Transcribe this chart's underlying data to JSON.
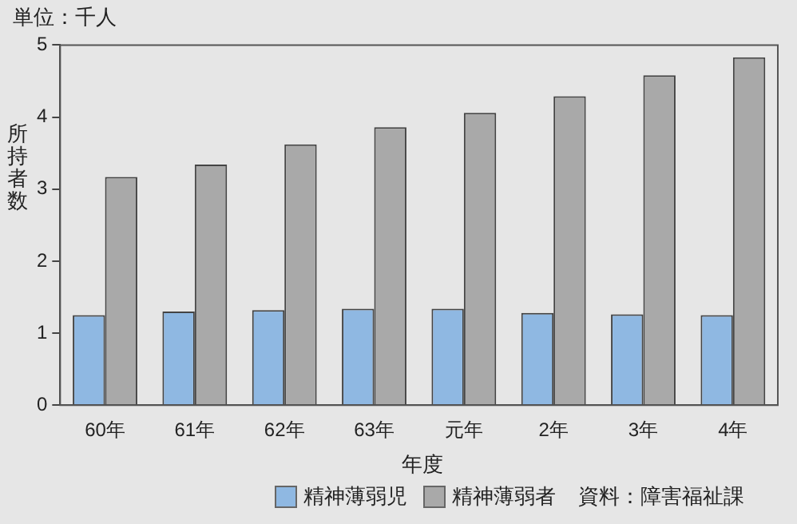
{
  "chart_data": {
    "type": "bar",
    "title": "単位：千人",
    "xlabel": "年度",
    "ylabel": "所持者数",
    "categories": [
      "60年",
      "61年",
      "62年",
      "63年",
      "元年",
      "2年",
      "3年",
      "4年"
    ],
    "series": [
      {
        "name": "精神薄弱児",
        "color": "#8fb8e2",
        "values": [
          1.25,
          1.3,
          1.32,
          1.34,
          1.34,
          1.28,
          1.26,
          1.25
        ]
      },
      {
        "name": "精神薄弱者",
        "color": "#a9a9a9",
        "values": [
          3.17,
          3.34,
          3.62,
          3.86,
          4.06,
          4.29,
          4.58,
          4.83
        ]
      }
    ],
    "ylim": [
      0,
      5
    ],
    "yticks": [
      0,
      1,
      2,
      3,
      4,
      5
    ],
    "grid": false,
    "legend": "bottom",
    "annotations": [
      "資料：障害福祉課"
    ]
  }
}
